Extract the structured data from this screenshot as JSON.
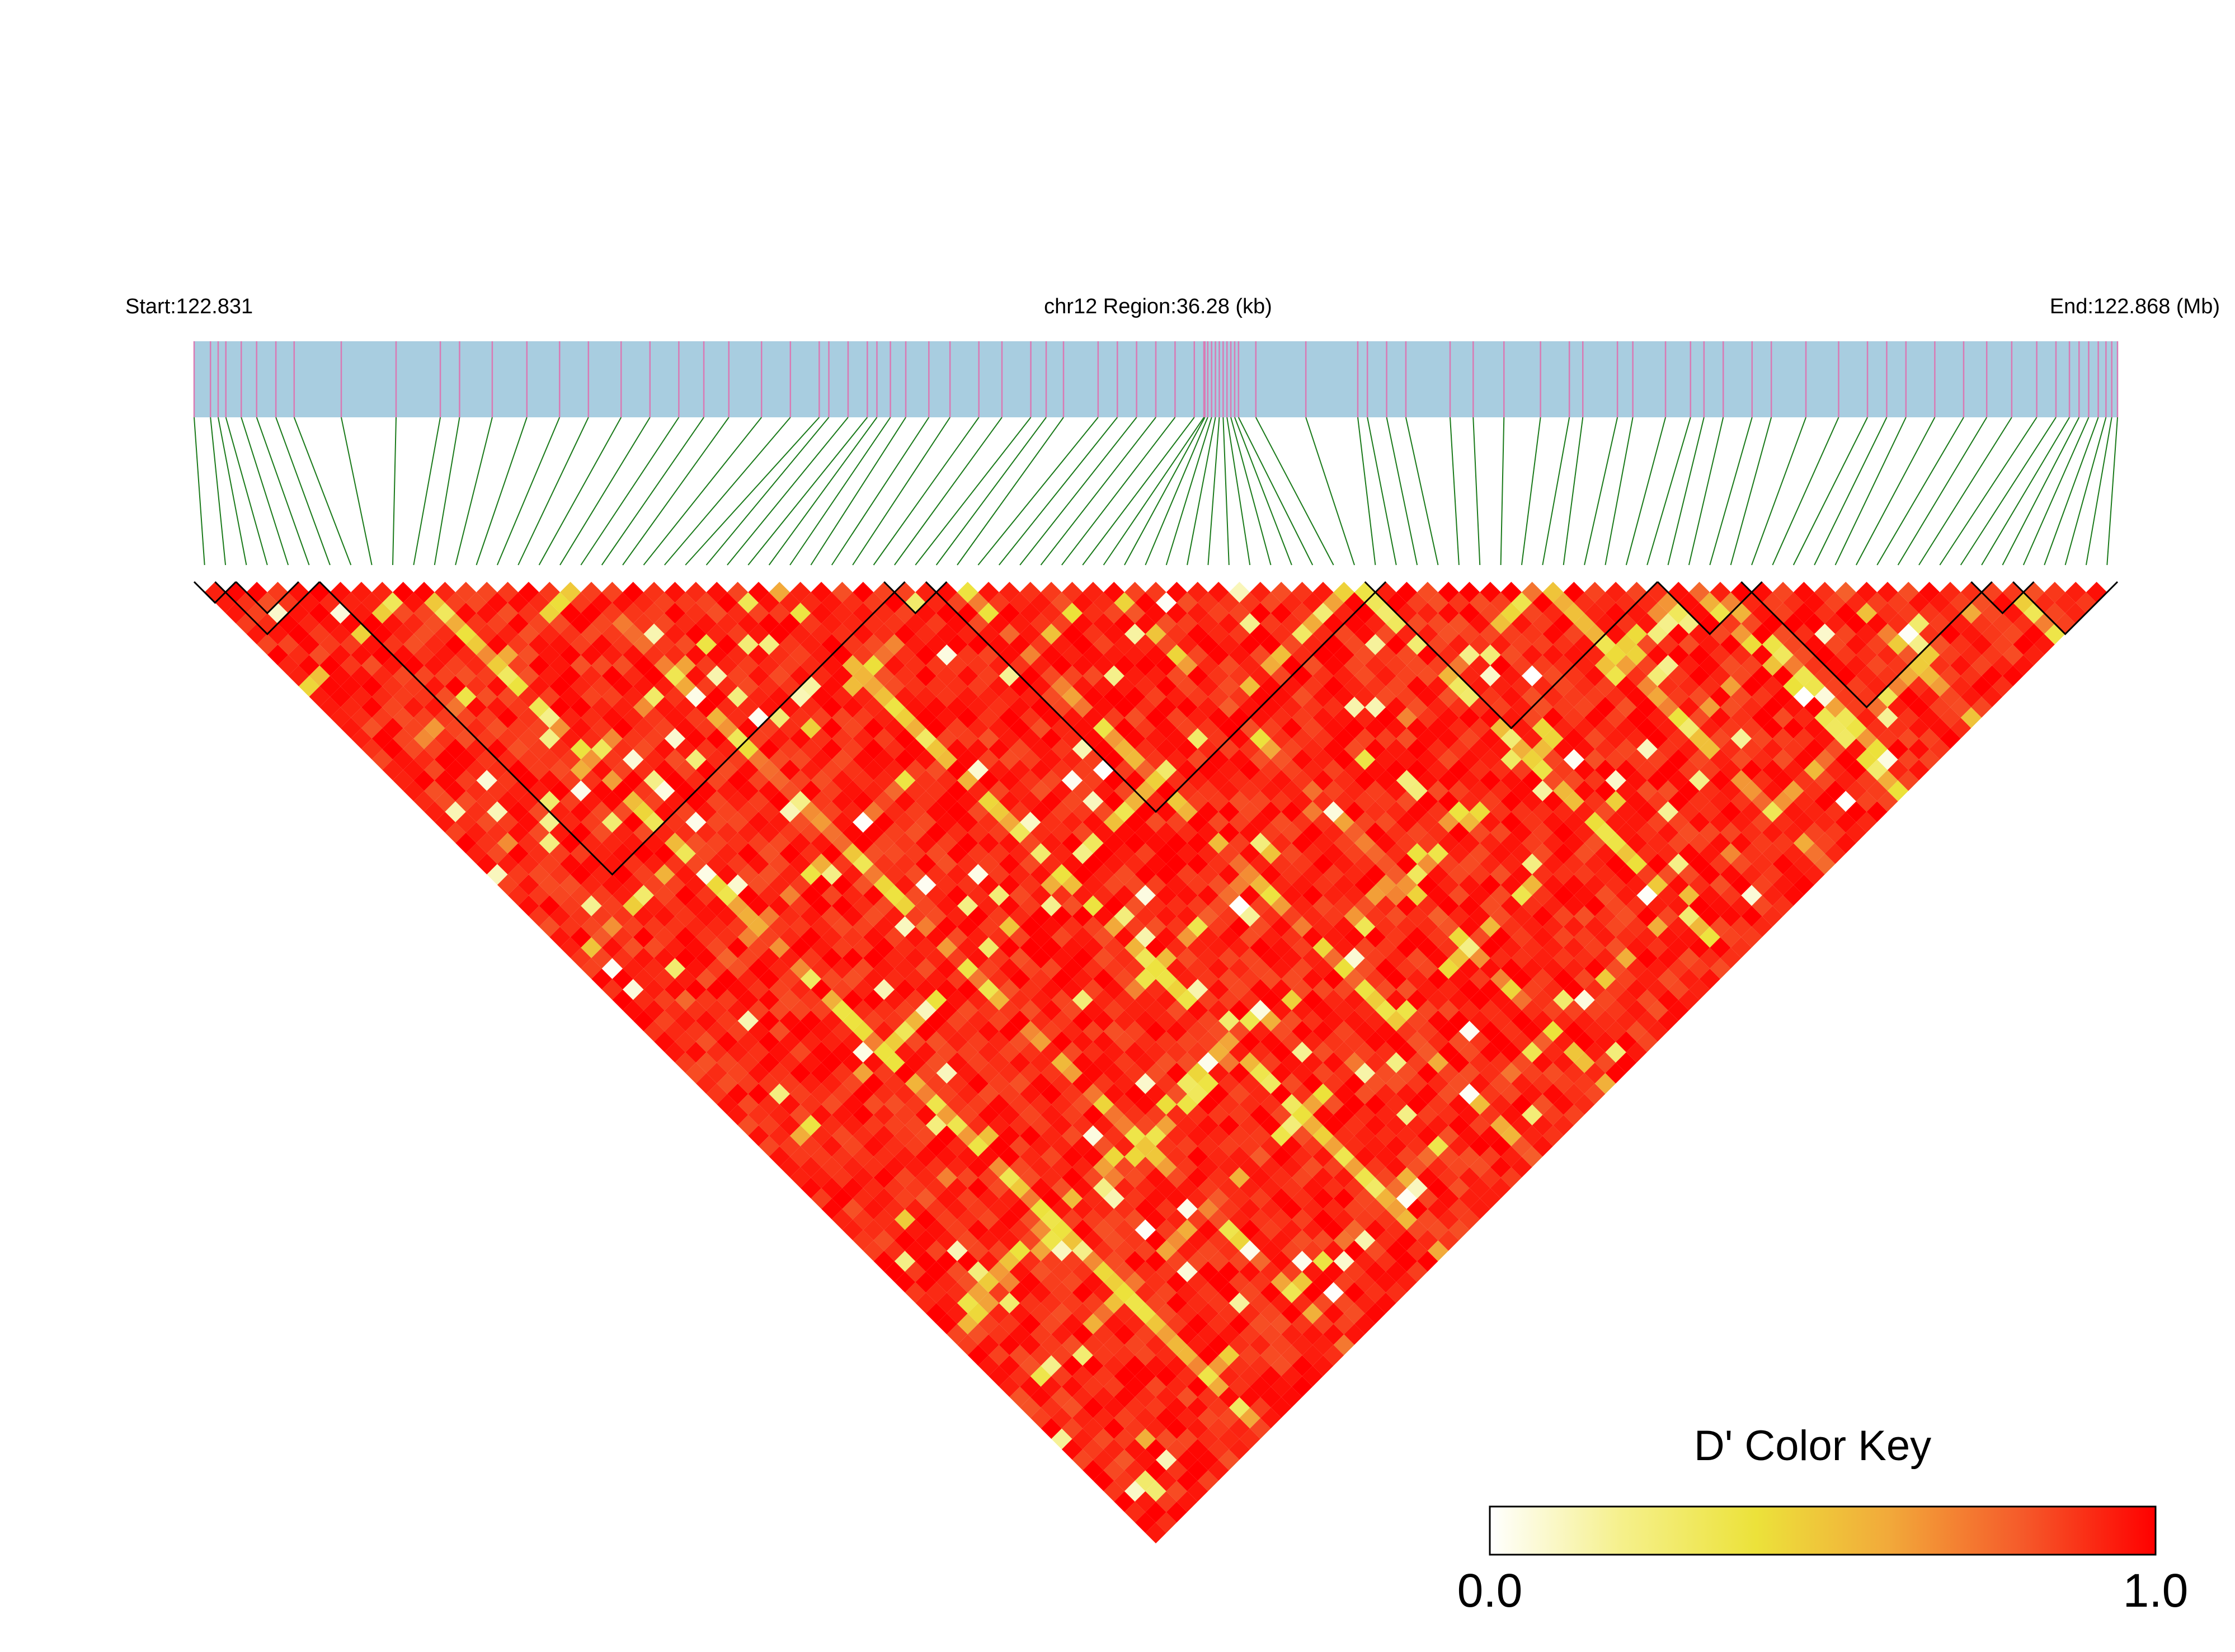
{
  "header": {
    "start_label": "Start:122.831",
    "region_label": "chr12 Region:36.28 (kb)",
    "end_label": "End:122.868 (Mb)"
  },
  "legend": {
    "title": "D' Color Key",
    "min_label": "0.0",
    "max_label": "1.0",
    "gradient_colors": [
      "#ffffff",
      "#f5f08a",
      "#ece23a",
      "#f2a93a",
      "#f55a2a",
      "#ff0000"
    ]
  },
  "colors": {
    "gene_track": "#a8cde0",
    "snp_tick": "#d97ab4",
    "connector": "#1a7a1a",
    "block_outline": "#000000"
  },
  "chart_data": {
    "type": "heatmap",
    "chromosome": "chr12",
    "region_start_mb": 122.831,
    "region_end_mb": 122.868,
    "region_kb": 36.28,
    "value_label": "D'",
    "value_range": [
      0.0,
      1.0
    ],
    "n_snps": 92,
    "snp_positions_frac": [
      0,
      0.0085,
      0.0125,
      0.0165,
      0.0245,
      0.0325,
      0.0425,
      0.052,
      0.0765,
      0.105,
      0.128,
      0.138,
      0.155,
      0.173,
      0.19,
      0.205,
      0.222,
      0.237,
      0.252,
      0.265,
      0.278,
      0.295,
      0.31,
      0.325,
      0.33,
      0.34,
      0.35,
      0.355,
      0.362,
      0.37,
      0.382,
      0.393,
      0.408,
      0.42,
      0.435,
      0.443,
      0.452,
      0.47,
      0.48,
      0.49,
      0.5,
      0.51,
      0.52,
      0.525,
      0.5255,
      0.527,
      0.529,
      0.531,
      0.533,
      0.535,
      0.537,
      0.539,
      0.541,
      0.543,
      0.552,
      0.578,
      0.605,
      0.61,
      0.62,
      0.63,
      0.653,
      0.665,
      0.681,
      0.7,
      0.715,
      0.722,
      0.74,
      0.748,
      0.765,
      0.778,
      0.785,
      0.795,
      0.81,
      0.82,
      0.838,
      0.855,
      0.87,
      0.88,
      0.89,
      0.905,
      0.92,
      0.932,
      0.945,
      0.958,
      0.968,
      0.975,
      0.98,
      0.985,
      0.99,
      0.994,
      0.997,
      1.0
    ],
    "haplotype_blocks": [
      [
        0,
        1
      ],
      [
        1,
        5
      ],
      [
        2,
        4
      ],
      [
        6,
        33
      ],
      [
        33,
        35
      ],
      [
        35,
        56
      ],
      [
        56,
        69
      ],
      [
        70,
        74
      ],
      [
        74,
        85
      ],
      [
        85,
        87
      ],
      [
        87,
        91
      ]
    ],
    "matrix_note": "Pairwise D' values across 92 SNPs; predominantly high linkage (D' near 1.0, red) with scattered lower-D' pairs (yellow/white) along several diagonal stripes."
  }
}
